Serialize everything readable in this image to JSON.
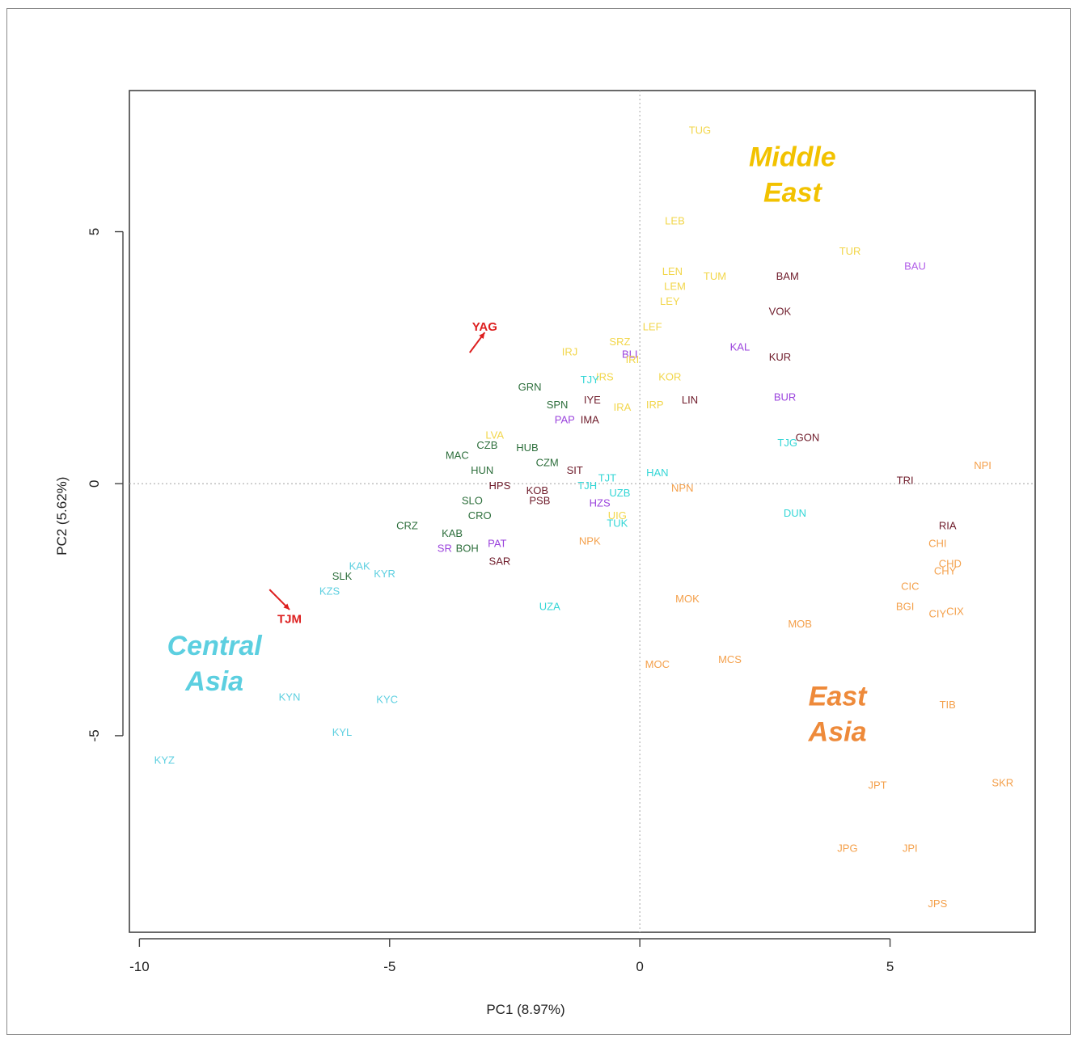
{
  "chart_data": {
    "type": "scatter",
    "title": "",
    "xlabel": "PC1 (8.97%)",
    "ylabel": "PC2 (5.62%)",
    "xlim": [
      -10.2,
      7.9
    ],
    "ylim": [
      -8.9,
      7.8
    ],
    "xticks": [
      -10,
      -5,
      0,
      5
    ],
    "yticks": [
      -5,
      0,
      5
    ],
    "xtick_labels": [
      "-10",
      "-5",
      "0",
      "5"
    ],
    "ytick_labels": [
      "-5",
      "0",
      "5"
    ],
    "grid": false,
    "reference_lines": [
      {
        "axis": "x",
        "value": 0
      },
      {
        "axis": "y",
        "value": 0
      }
    ],
    "colors": {
      "middle_east": "#f2c200",
      "central_asia": "#5ccfe0",
      "east_asia": "#ee8a3a",
      "highlight": "#dd1f1f",
      "dark_green": "#2c6e3b",
      "dark_red": "#6e1b2a",
      "purple": "#9b44dd",
      "cyan": "#33d6d6",
      "orange": "#f4a04b"
    },
    "region_labels": [
      {
        "text": "Middle\nEast",
        "x": 3.05,
        "y": 6.3,
        "color": "#f2c200"
      },
      {
        "text": "Central\nAsia",
        "x": -8.5,
        "y": -3.4,
        "color": "#5ccfe0"
      },
      {
        "text": "East\nAsia",
        "x": 3.95,
        "y": -4.4,
        "color": "#ee8a3a"
      }
    ],
    "highlights": [
      {
        "label": "YAG",
        "x": -3.1,
        "y": 3.1,
        "arrow_from": [
          -3.4,
          2.6
        ],
        "arrow_to": [
          -3.1,
          3.0
        ]
      },
      {
        "label": "TJM",
        "x": -7.0,
        "y": -2.7,
        "arrow_from": [
          -7.4,
          -2.1
        ],
        "arrow_to": [
          -7.0,
          -2.5
        ]
      }
    ],
    "points": [
      {
        "label": "TUG",
        "x": 1.2,
        "y": 7.0,
        "color": "#f2d64a"
      },
      {
        "label": "LEB",
        "x": 0.7,
        "y": 5.2,
        "color": "#f2d64a"
      },
      {
        "label": "TUR",
        "x": 4.2,
        "y": 4.6,
        "color": "#f2d64a"
      },
      {
        "label": "BAU",
        "x": 5.5,
        "y": 4.3,
        "color": "#b15de8"
      },
      {
        "label": "LEN",
        "x": 0.65,
        "y": 4.2,
        "color": "#f2d64a"
      },
      {
        "label": "TUM",
        "x": 1.5,
        "y": 4.1,
        "color": "#f2d64a"
      },
      {
        "label": "BAM",
        "x": 2.95,
        "y": 4.1,
        "color": "#6e1b2a"
      },
      {
        "label": "LEM",
        "x": 0.7,
        "y": 3.9,
        "color": "#f2d64a"
      },
      {
        "label": "LEY",
        "x": 0.6,
        "y": 3.6,
        "color": "#f2d64a"
      },
      {
        "label": "VOK",
        "x": 2.8,
        "y": 3.4,
        "color": "#6e1b2a"
      },
      {
        "label": "LEF",
        "x": 0.25,
        "y": 3.1,
        "color": "#f2d64a"
      },
      {
        "label": "SRZ",
        "x": -0.4,
        "y": 2.8,
        "color": "#f2d64a"
      },
      {
        "label": "IRJ",
        "x": -1.4,
        "y": 2.6,
        "color": "#f2d64a"
      },
      {
        "label": "KAL",
        "x": 2.0,
        "y": 2.7,
        "color": "#9b44dd"
      },
      {
        "label": "BLI",
        "x": -0.2,
        "y": 2.55,
        "color": "#9b44dd"
      },
      {
        "label": "IRI",
        "x": -0.15,
        "y": 2.45,
        "color": "#f2d64a"
      },
      {
        "label": "KUR",
        "x": 2.8,
        "y": 2.5,
        "color": "#6e1b2a"
      },
      {
        "label": "IRS",
        "x": -0.7,
        "y": 2.1,
        "color": "#f2d64a"
      },
      {
        "label": "TJY",
        "x": -1.0,
        "y": 2.05,
        "color": "#33d6d6"
      },
      {
        "label": "KOR",
        "x": 0.6,
        "y": 2.1,
        "color": "#f2d64a"
      },
      {
        "label": "GRN",
        "x": -2.2,
        "y": 1.9,
        "color": "#2c6e3b"
      },
      {
        "label": "BUR",
        "x": 2.9,
        "y": 1.7,
        "color": "#9b44dd"
      },
      {
        "label": "IYE",
        "x": -0.95,
        "y": 1.65,
        "color": "#6e1b2a"
      },
      {
        "label": "LIN",
        "x": 1.0,
        "y": 1.65,
        "color": "#6e1b2a"
      },
      {
        "label": "SPN",
        "x": -1.65,
        "y": 1.55,
        "color": "#2c6e3b"
      },
      {
        "label": "IRP",
        "x": 0.3,
        "y": 1.55,
        "color": "#f2d64a"
      },
      {
        "label": "IRA",
        "x": -0.35,
        "y": 1.5,
        "color": "#f2d64a"
      },
      {
        "label": "PAP",
        "x": -1.5,
        "y": 1.25,
        "color": "#9b44dd"
      },
      {
        "label": "IMA",
        "x": -1.0,
        "y": 1.25,
        "color": "#6e1b2a"
      },
      {
        "label": "GON",
        "x": 3.35,
        "y": 0.9,
        "color": "#6e1b2a"
      },
      {
        "label": "TJG",
        "x": 2.95,
        "y": 0.8,
        "color": "#33d6d6"
      },
      {
        "label": "LVA",
        "x": -2.9,
        "y": 0.95,
        "color": "#f2d64a"
      },
      {
        "label": "CZB",
        "x": -3.05,
        "y": 0.75,
        "color": "#2c6e3b"
      },
      {
        "label": "HUB",
        "x": -2.25,
        "y": 0.7,
        "color": "#2c6e3b"
      },
      {
        "label": "MAC",
        "x": -3.65,
        "y": 0.55,
        "color": "#2c6e3b"
      },
      {
        "label": "CZM",
        "x": -1.85,
        "y": 0.4,
        "color": "#2c6e3b"
      },
      {
        "label": "HUN",
        "x": -3.15,
        "y": 0.25,
        "color": "#2c6e3b"
      },
      {
        "label": "SIT",
        "x": -1.3,
        "y": 0.25,
        "color": "#6e1b2a"
      },
      {
        "label": "HAN",
        "x": 0.35,
        "y": 0.2,
        "color": "#33d6d6"
      },
      {
        "label": "TJT",
        "x": -0.65,
        "y": 0.1,
        "color": "#33d6d6"
      },
      {
        "label": "NPI",
        "x": 6.85,
        "y": 0.35,
        "color": "#f4a04b"
      },
      {
        "label": "TRI",
        "x": 5.3,
        "y": 0.05,
        "color": "#6e1b2a"
      },
      {
        "label": "HPS",
        "x": -2.8,
        "y": -0.05,
        "color": "#6e1b2a"
      },
      {
        "label": "TJH",
        "x": -1.05,
        "y": -0.05,
        "color": "#33d6d6"
      },
      {
        "label": "NPN",
        "x": 0.85,
        "y": -0.1,
        "color": "#f4a04b"
      },
      {
        "label": "KOB",
        "x": -2.05,
        "y": -0.15,
        "color": "#6e1b2a"
      },
      {
        "label": "PSB",
        "x": -2.0,
        "y": -0.35,
        "color": "#6e1b2a"
      },
      {
        "label": "SLO",
        "x": -3.35,
        "y": -0.35,
        "color": "#2c6e3b"
      },
      {
        "label": "HZS",
        "x": -0.8,
        "y": -0.4,
        "color": "#9b44dd"
      },
      {
        "label": "UZB",
        "x": -0.4,
        "y": -0.2,
        "color": "#33d6d6"
      },
      {
        "label": "CRO",
        "x": -3.2,
        "y": -0.65,
        "color": "#2c6e3b"
      },
      {
        "label": "DUN",
        "x": 3.1,
        "y": -0.6,
        "color": "#33d6d6"
      },
      {
        "label": "UIG",
        "x": -0.45,
        "y": -0.65,
        "color": "#f2d64a"
      },
      {
        "label": "TUK",
        "x": -0.45,
        "y": -0.8,
        "color": "#33d6d6"
      },
      {
        "label": "CRZ",
        "x": -4.65,
        "y": -0.85,
        "color": "#2c6e3b"
      },
      {
        "label": "KAB",
        "x": -3.75,
        "y": -1.0,
        "color": "#2c6e3b"
      },
      {
        "label": "RIA",
        "x": 6.15,
        "y": -0.85,
        "color": "#6e1b2a"
      },
      {
        "label": "PAT",
        "x": -2.85,
        "y": -1.2,
        "color": "#9b44dd"
      },
      {
        "label": "NPK",
        "x": -1.0,
        "y": -1.15,
        "color": "#f4a04b"
      },
      {
        "label": "CHI",
        "x": 5.95,
        "y": -1.2,
        "color": "#f4a04b"
      },
      {
        "label": "BOH",
        "x": -3.45,
        "y": -1.3,
        "color": "#2c6e3b"
      },
      {
        "label": "SR",
        "x": -3.9,
        "y": -1.3,
        "color": "#9b44dd"
      },
      {
        "label": "SAR",
        "x": -2.8,
        "y": -1.55,
        "color": "#6e1b2a"
      },
      {
        "label": "CHD",
        "x": 6.2,
        "y": -1.6,
        "color": "#f4a04b"
      },
      {
        "label": "CHY",
        "x": 6.1,
        "y": -1.75,
        "color": "#f4a04b"
      },
      {
        "label": "SLK",
        "x": -5.95,
        "y": -1.85,
        "color": "#2c6e3b"
      },
      {
        "label": "KAK",
        "x": -5.6,
        "y": -1.65,
        "color": "#5ccfe0"
      },
      {
        "label": "KYR",
        "x": -5.1,
        "y": -1.8,
        "color": "#5ccfe0"
      },
      {
        "label": "CIC",
        "x": 5.4,
        "y": -2.05,
        "color": "#f4a04b"
      },
      {
        "label": "KZS",
        "x": -6.2,
        "y": -2.15,
        "color": "#5ccfe0"
      },
      {
        "label": "BGI",
        "x": 5.3,
        "y": -2.45,
        "color": "#f4a04b"
      },
      {
        "label": "CIY",
        "x": 5.95,
        "y": -2.6,
        "color": "#f4a04b"
      },
      {
        "label": "CIX",
        "x": 6.3,
        "y": -2.55,
        "color": "#f4a04b"
      },
      {
        "label": "MOK",
        "x": 0.95,
        "y": -2.3,
        "color": "#f4a04b"
      },
      {
        "label": "UZA",
        "x": -1.8,
        "y": -2.45,
        "color": "#33d6d6"
      },
      {
        "label": "MOB",
        "x": 3.2,
        "y": -2.8,
        "color": "#f4a04b"
      },
      {
        "label": "MCS",
        "x": 1.8,
        "y": -3.5,
        "color": "#f4a04b"
      },
      {
        "label": "MOC",
        "x": 0.35,
        "y": -3.6,
        "color": "#f4a04b"
      },
      {
        "label": "TIB",
        "x": 6.15,
        "y": -4.4,
        "color": "#f4a04b"
      },
      {
        "label": "KYN",
        "x": -7.0,
        "y": -4.25,
        "color": "#5ccfe0"
      },
      {
        "label": "KYC",
        "x": -5.05,
        "y": -4.3,
        "color": "#5ccfe0"
      },
      {
        "label": "KYL",
        "x": -5.95,
        "y": -4.95,
        "color": "#5ccfe0"
      },
      {
        "label": "KYZ",
        "x": -9.5,
        "y": -5.5,
        "color": "#5ccfe0"
      },
      {
        "label": "JPT",
        "x": 4.75,
        "y": -6.0,
        "color": "#f4a04b"
      },
      {
        "label": "SKR",
        "x": 7.25,
        "y": -5.95,
        "color": "#f4a04b"
      },
      {
        "label": "JPG",
        "x": 4.15,
        "y": -7.25,
        "color": "#f4a04b"
      },
      {
        "label": "JPI",
        "x": 5.4,
        "y": -7.25,
        "color": "#f4a04b"
      },
      {
        "label": "JPS",
        "x": 5.95,
        "y": -8.35,
        "color": "#f4a04b"
      }
    ]
  }
}
